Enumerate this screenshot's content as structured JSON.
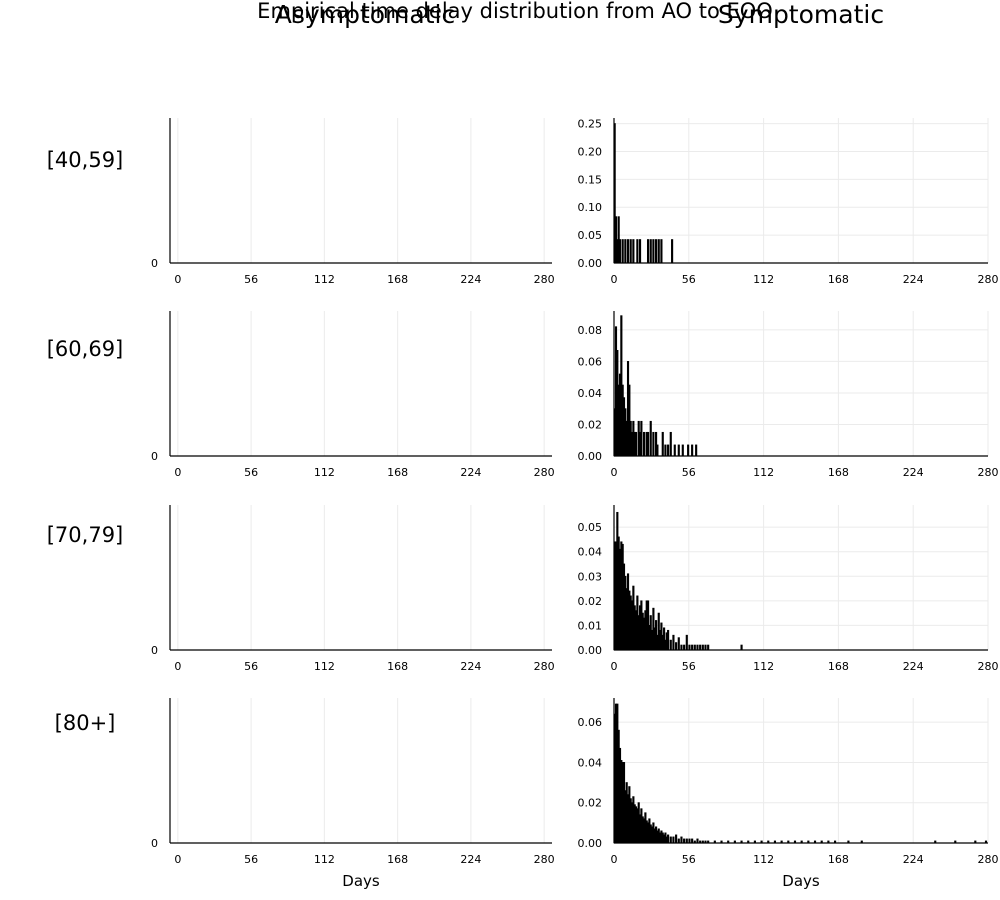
{
  "figure": {
    "title": "Empirical time delay distribution from AO to EOO",
    "column_titles": [
      "Asymptomatic",
      "Symptomatic"
    ],
    "row_labels": [
      "[40,59]",
      "[60,69]",
      "[70,79]",
      "[80+]"
    ],
    "xlabel": "Days"
  },
  "colors": {
    "bar": "#000000",
    "grid": "#ebebeb",
    "axis": "#000000"
  },
  "chart_data": [
    {
      "type": "bar",
      "panel": "asymptomatic-40-59",
      "title": "",
      "xlabel": "",
      "ylabel": "",
      "xlim": [
        -6,
        286
      ],
      "xticks": [
        0,
        56,
        112,
        168,
        224,
        280
      ],
      "yticks": [
        0
      ],
      "ytick_labels": [
        "0"
      ],
      "x": [],
      "values": []
    },
    {
      "type": "bar",
      "panel": "symptomatic-40-59",
      "title": "",
      "xlabel": "",
      "ylabel": "",
      "xlim": [
        0,
        280
      ],
      "ylim": [
        0,
        0.26
      ],
      "xticks": [
        0,
        56,
        112,
        168,
        224,
        280
      ],
      "yticks": [
        0,
        0.05,
        0.1,
        0.15,
        0.2,
        0.25
      ],
      "ytick_labels": [
        "0.00",
        "0.05",
        "0.10",
        "0.15",
        "0.20",
        "0.25"
      ],
      "x": [
        0,
        1,
        2,
        3,
        4,
        6,
        8,
        10,
        12,
        14,
        17,
        19,
        25,
        27,
        29,
        31,
        33,
        35,
        43
      ],
      "values": [
        0.25,
        0.083,
        0.042,
        0.083,
        0.042,
        0.042,
        0.042,
        0.042,
        0.042,
        0.042,
        0.042,
        0.042,
        0.042,
        0.042,
        0.042,
        0.042,
        0.042,
        0.042,
        0.042
      ]
    },
    {
      "type": "bar",
      "panel": "asymptomatic-60-69",
      "title": "",
      "xlabel": "",
      "ylabel": "",
      "xlim": [
        -6,
        286
      ],
      "xticks": [
        0,
        56,
        112,
        168,
        224,
        280
      ],
      "yticks": [
        0
      ],
      "ytick_labels": [
        "0"
      ],
      "x": [],
      "values": []
    },
    {
      "type": "bar",
      "panel": "symptomatic-60-69",
      "title": "",
      "xlabel": "",
      "ylabel": "",
      "xlim": [
        0,
        280
      ],
      "ylim": [
        0,
        0.092
      ],
      "xticks": [
        0,
        56,
        112,
        168,
        224,
        280
      ],
      "yticks": [
        0,
        0.02,
        0.04,
        0.06,
        0.08
      ],
      "ytick_labels": [
        "0.00",
        "0.02",
        "0.04",
        "0.06",
        "0.08"
      ],
      "x": [
        0,
        1,
        2,
        3,
        4,
        5,
        6,
        7,
        8,
        9,
        10,
        11,
        12,
        13,
        14,
        15,
        16,
        18,
        19,
        20,
        22,
        24,
        25,
        27,
        29,
        31,
        32,
        36,
        38,
        40,
        42,
        45,
        48,
        51,
        55,
        58,
        61
      ],
      "values": [
        0.03,
        0.082,
        0.067,
        0.045,
        0.052,
        0.089,
        0.045,
        0.037,
        0.03,
        0.022,
        0.06,
        0.045,
        0.022,
        0.015,
        0.022,
        0.015,
        0.015,
        0.022,
        0.015,
        0.022,
        0.015,
        0.015,
        0.015,
        0.022,
        0.015,
        0.015,
        0.007,
        0.015,
        0.007,
        0.007,
        0.015,
        0.007,
        0.007,
        0.007,
        0.007,
        0.007,
        0.007
      ]
    },
    {
      "type": "bar",
      "panel": "asymptomatic-70-79",
      "title": "",
      "xlabel": "",
      "ylabel": "",
      "xlim": [
        -6,
        286
      ],
      "xticks": [
        0,
        56,
        112,
        168,
        224,
        280
      ],
      "yticks": [
        0
      ],
      "ytick_labels": [
        "0"
      ],
      "x": [],
      "values": []
    },
    {
      "type": "bar",
      "panel": "symptomatic-70-79",
      "title": "",
      "xlabel": "",
      "ylabel": "",
      "xlim": [
        0,
        280
      ],
      "ylim": [
        0,
        0.059
      ],
      "xticks": [
        0,
        56,
        112,
        168,
        224,
        280
      ],
      "yticks": [
        0,
        0.01,
        0.02,
        0.03,
        0.04,
        0.05
      ],
      "ytick_labels": [
        "0.00",
        "0.01",
        "0.02",
        "0.03",
        "0.04",
        "0.05"
      ],
      "x": [
        0,
        1,
        2,
        3,
        4,
        5,
        6,
        7,
        8,
        9,
        10,
        11,
        12,
        13,
        14,
        15,
        16,
        17,
        18,
        19,
        20,
        21,
        22,
        23,
        24,
        25,
        26,
        27,
        28,
        29,
        30,
        31,
        32,
        33,
        34,
        35,
        36,
        37,
        38,
        39,
        40,
        42,
        44,
        46,
        48,
        50,
        52,
        54,
        56,
        58,
        60,
        62,
        64,
        66,
        68,
        70,
        95
      ],
      "values": [
        0.044,
        0.044,
        0.056,
        0.046,
        0.041,
        0.044,
        0.043,
        0.035,
        0.03,
        0.025,
        0.031,
        0.024,
        0.022,
        0.02,
        0.026,
        0.018,
        0.016,
        0.022,
        0.014,
        0.018,
        0.02,
        0.015,
        0.013,
        0.016,
        0.02,
        0.02,
        0.01,
        0.014,
        0.008,
        0.017,
        0.009,
        0.012,
        0.006,
        0.015,
        0.008,
        0.011,
        0.006,
        0.009,
        0.004,
        0.007,
        0.008,
        0.004,
        0.006,
        0.003,
        0.005,
        0.002,
        0.002,
        0.006,
        0.002,
        0.002,
        0.002,
        0.002,
        0.002,
        0.002,
        0.002,
        0.002,
        0.002
      ]
    },
    {
      "type": "bar",
      "panel": "asymptomatic-80-plus",
      "title": "",
      "xlabel": "Days",
      "ylabel": "",
      "xlim": [
        -6,
        286
      ],
      "xticks": [
        0,
        56,
        112,
        168,
        224,
        280
      ],
      "yticks": [
        0
      ],
      "ytick_labels": [
        "0"
      ],
      "x": [],
      "values": []
    },
    {
      "type": "bar",
      "panel": "symptomatic-80-plus",
      "title": "",
      "xlabel": "Days",
      "ylabel": "",
      "xlim": [
        0,
        280
      ],
      "ylim": [
        0,
        0.072
      ],
      "xticks": [
        0,
        56,
        112,
        168,
        224,
        280
      ],
      "yticks": [
        0,
        0.02,
        0.04,
        0.06
      ],
      "ytick_labels": [
        "0.00",
        "0.02",
        "0.04",
        "0.06"
      ],
      "x": [
        0,
        1,
        2,
        3,
        4,
        5,
        6,
        7,
        8,
        9,
        10,
        11,
        12,
        13,
        14,
        15,
        16,
        17,
        18,
        19,
        20,
        21,
        22,
        23,
        24,
        25,
        26,
        27,
        28,
        29,
        30,
        31,
        32,
        33,
        34,
        35,
        36,
        37,
        38,
        39,
        40,
        42,
        44,
        46,
        48,
        50,
        52,
        54,
        56,
        58,
        60,
        62,
        64,
        66,
        68,
        70,
        75,
        80,
        85,
        90,
        95,
        100,
        105,
        110,
        115,
        120,
        125,
        130,
        135,
        140,
        145,
        150,
        155,
        160,
        165,
        175,
        185,
        240,
        255,
        270,
        278
      ],
      "values": [
        0.064,
        0.069,
        0.069,
        0.056,
        0.047,
        0.041,
        0.04,
        0.04,
        0.026,
        0.03,
        0.024,
        0.028,
        0.022,
        0.02,
        0.023,
        0.019,
        0.018,
        0.017,
        0.02,
        0.014,
        0.017,
        0.013,
        0.012,
        0.015,
        0.011,
        0.01,
        0.012,
        0.009,
        0.008,
        0.01,
        0.007,
        0.008,
        0.006,
        0.007,
        0.005,
        0.006,
        0.005,
        0.004,
        0.005,
        0.003,
        0.004,
        0.003,
        0.003,
        0.004,
        0.002,
        0.003,
        0.002,
        0.002,
        0.002,
        0.002,
        0.001,
        0.002,
        0.001,
        0.001,
        0.001,
        0.001,
        0.001,
        0.001,
        0.001,
        0.001,
        0.001,
        0.001,
        0.001,
        0.001,
        0.001,
        0.001,
        0.001,
        0.001,
        0.001,
        0.001,
        0.001,
        0.001,
        0.001,
        0.001,
        0.001,
        0.001,
        0.001,
        0.001,
        0.001,
        0.001,
        0.001
      ]
    }
  ]
}
